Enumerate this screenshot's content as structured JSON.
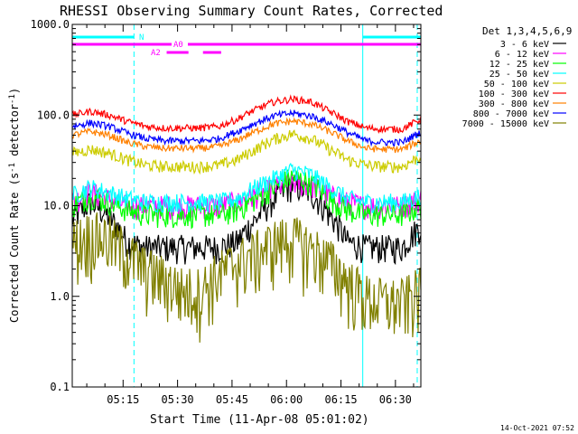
{
  "chart_data": {
    "type": "line",
    "title": "RHESSI Observing Summary Count Rates, Corrected",
    "xlabel": "Start Time (11-Apr-08 05:01:02)",
    "ylabel": "Corrected Count Rate (s",
    "ylabel_sup1": "-1",
    "ylabel_mid": " detector",
    "ylabel_sup2": "-1",
    "ylabel_end": ")",
    "y_scale": "log",
    "ylim": [
      0.1,
      1000
    ],
    "y_ticks": [
      0.1,
      1.0,
      10.0,
      100.0,
      1000.0
    ],
    "y_tick_labels": [
      "0.1",
      "1.0",
      "10.0",
      "100.0",
      "1000.0"
    ],
    "x_range_minutes": [
      0,
      96
    ],
    "x_ticks_minutes": [
      14,
      29,
      44,
      59,
      74,
      89
    ],
    "x_tick_labels": [
      "05:15",
      "05:30",
      "05:45",
      "06:00",
      "06:15",
      "06:30"
    ],
    "legend_title": "Det 1,3,4,5,6,9",
    "legend_placement": "right",
    "timestamp": "14-Oct-2021 07:52",
    "series": [
      {
        "name": "3 - 6 keV",
        "color": "#000000",
        "base": [
          7,
          11,
          7.5,
          4,
          3.5,
          3.5,
          3.5,
          3.5,
          3.5,
          4,
          7,
          12,
          17,
          14,
          8,
          4,
          3.5,
          3.5,
          3.5,
          6
        ],
        "noise": 0.12
      },
      {
        "name": "6 - 12 keV",
        "color": "#ff00ff",
        "base": [
          11,
          14,
          12,
          10,
          10,
          10,
          10,
          10,
          10,
          11,
          13,
          16,
          18,
          17,
          13,
          11,
          10,
          10,
          10,
          12
        ],
        "noise": 0.1
      },
      {
        "name": "12 - 25 keV",
        "color": "#00ff00",
        "base": [
          10,
          13,
          11,
          9,
          8,
          8,
          8,
          8,
          8,
          9,
          12,
          16,
          21,
          18,
          12,
          9,
          8,
          8,
          8,
          10
        ],
        "noise": 0.1
      },
      {
        "name": "25 - 50 keV",
        "color": "#00ffff",
        "base": [
          13,
          16,
          14,
          12,
          11,
          11,
          11,
          11,
          11,
          12,
          16,
          20,
          25,
          22,
          16,
          12,
          11,
          11,
          11,
          13
        ],
        "noise": 0.08
      },
      {
        "name": "50 - 100 keV",
        "color": "#cccc00",
        "base": [
          38,
          42,
          38,
          32,
          28,
          27,
          27,
          27,
          28,
          32,
          42,
          54,
          62,
          55,
          42,
          32,
          28,
          27,
          27,
          35
        ],
        "noise": 0.05
      },
      {
        "name": "100 - 300 keV",
        "color": "#ff0000",
        "base": [
          100,
          110,
          100,
          85,
          75,
          72,
          72,
          72,
          75,
          90,
          115,
          140,
          150,
          140,
          110,
          85,
          72,
          70,
          70,
          90
        ],
        "noise": 0.03
      },
      {
        "name": "300 - 800 keV",
        "color": "#ff8000",
        "base": [
          60,
          66,
          60,
          50,
          45,
          43,
          43,
          43,
          45,
          53,
          66,
          80,
          86,
          80,
          66,
          52,
          43,
          42,
          42,
          52
        ],
        "noise": 0.03
      },
      {
        "name": "800 - 7000 keV",
        "color": "#0000ff",
        "base": [
          75,
          82,
          75,
          63,
          55,
          52,
          52,
          52,
          55,
          66,
          82,
          98,
          105,
          98,
          82,
          64,
          52,
          50,
          50,
          65
        ],
        "noise": 0.03
      },
      {
        "name": "7000 - 15000 keV",
        "color": "#808000",
        "base": [
          4,
          5,
          4.5,
          3,
          2,
          1.6,
          1.2,
          1.2,
          1.8,
          2.5,
          3,
          4,
          4.5,
          3.5,
          2.5,
          1.5,
          1,
          0.9,
          0.9,
          1.2
        ],
        "noise": 0.25
      }
    ],
    "status_bars": [
      {
        "label": "N",
        "color": "#00ffff",
        "segments": [
          [
            0,
            17
          ],
          [
            80,
            96
          ]
        ]
      },
      {
        "label": "A0",
        "color": "#ff00ff",
        "segments": [
          [
            0,
            96
          ]
        ]
      },
      {
        "label": "A2",
        "color": "#ff00ff",
        "segments": [
          [
            26,
            32
          ],
          [
            36,
            41
          ]
        ]
      }
    ],
    "cyan_lines_solid": [
      0,
      80
    ],
    "cyan_lines_dashed": [
      17,
      95
    ]
  }
}
